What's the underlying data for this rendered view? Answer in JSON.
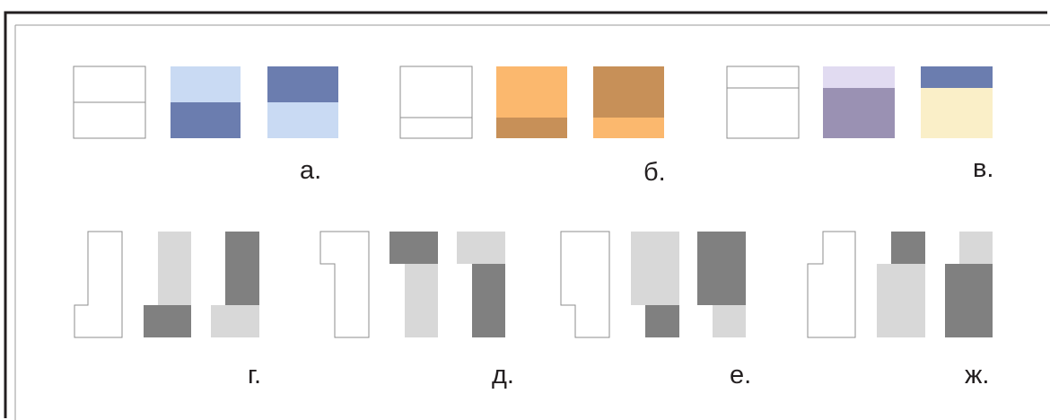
{
  "labels": {
    "a": "а.",
    "b": "б.",
    "v": "в.",
    "g": "г.",
    "d": "д.",
    "e": "е.",
    "zh": "ж."
  },
  "colors": {
    "outline": "#8e8e8e",
    "light_blue": "#c9daf3",
    "dark_blue": "#6b7daf",
    "light_orange": "#fbb86e",
    "dark_orange": "#c79058",
    "light_lavender": "#e1dbf1",
    "dark_lavender": "#9a91b3",
    "cream": "#faefc8",
    "light_gray": "#d8d8d8",
    "dark_gray": "#808080",
    "frame": "#231f20"
  }
}
